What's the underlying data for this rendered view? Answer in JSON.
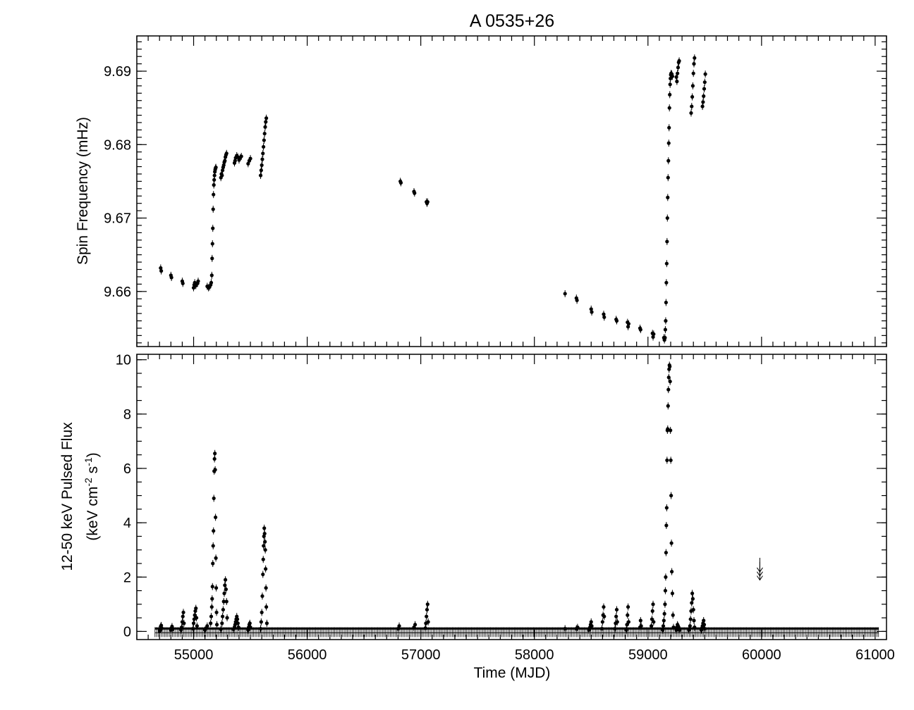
{
  "chart_data": {
    "type": "scatter",
    "title": "A 0535+26",
    "xlabel": "Time (MJD)",
    "xlim": [
      54500,
      61100
    ],
    "xticks": [
      55000,
      56000,
      57000,
      58000,
      59000,
      60000,
      61000
    ],
    "grid": false,
    "panels": [
      {
        "name": "spin-frequency",
        "ylabel": "Spin Frequency (mHz)",
        "ylim": [
          9.6525,
          9.6948
        ],
        "yticks": [
          9.66,
          9.67,
          9.68,
          9.69
        ],
        "ytick_labels": [
          "9.66",
          "9.67",
          "9.68",
          "9.69"
        ],
        "series": [
          {
            "x": [
              54710,
              54715,
              54800,
              54805,
              54900,
              54905,
              55000,
              55005,
              55010,
              55020,
              55035,
              55040,
              55120,
              55130,
              55140,
              55150,
              55155,
              55160,
              55163,
              55166,
              55169,
              55172,
              55175,
              55178,
              55181,
              55184,
              55187,
              55190,
              55193,
              55196,
              55240,
              55245,
              55250,
              55255,
              55260,
              55265,
              55270,
              55275,
              55280,
              55285,
              55290,
              55360,
              55365,
              55370,
              55380,
              55390,
              55400,
              55410,
              55420,
              55480,
              55490,
              55500,
              55590,
              55595,
              55600,
              55605,
              55610,
              55615,
              55620,
              55625,
              55630,
              55635,
              55640,
              56820,
              56825,
              56940,
              56945,
              57050,
              57055,
              57060,
              58270,
              58370,
              58375,
              58500,
              58505,
              58610,
              58615,
              58720,
              58725,
              58820,
              58825,
              58830,
              58930,
              58935,
              59040,
              59045,
              59050,
              59140,
              59145,
              59150,
              59153,
              59156,
              59159,
              59162,
              59165,
              59168,
              59171,
              59174,
              59177,
              59180,
              59183,
              59186,
              59189,
              59192,
              59195,
              59198,
              59201,
              59204,
              59210,
              59215,
              59250,
              59255,
              59260,
              59265,
              59270,
              59275,
              59380,
              59385,
              59390,
              59395,
              59400,
              59405,
              59410,
              59480,
              59485,
              59490,
              59495,
              59500,
              59505
            ],
            "y": [
              9.6632,
              9.6628,
              9.6622,
              9.6619,
              9.6614,
              9.6611,
              9.6605,
              9.6609,
              9.6612,
              9.6608,
              9.6611,
              9.6614,
              9.6607,
              9.6605,
              9.6606,
              9.6609,
              9.6612,
              9.6622,
              9.6645,
              9.6665,
              9.6686,
              9.6712,
              9.6732,
              9.6745,
              9.6752,
              9.6758,
              9.6763,
              9.6766,
              9.6768,
              9.6769,
              9.6755,
              9.676,
              9.6758,
              9.6765,
              9.6769,
              9.6772,
              9.6776,
              9.6778,
              9.6783,
              9.6786,
              9.6788,
              9.6775,
              9.6778,
              9.6782,
              9.6785,
              9.6783,
              9.6779,
              9.6782,
              9.6784,
              9.6774,
              9.6778,
              9.6781,
              9.6758,
              9.6765,
              9.6772,
              9.678,
              9.6788,
              9.6797,
              9.6806,
              9.6815,
              9.6824,
              9.6831,
              9.6836,
              9.675,
              9.6748,
              9.6736,
              9.6734,
              9.6722,
              9.672,
              9.6722,
              9.6597,
              9.6591,
              9.6588,
              9.6576,
              9.6572,
              9.6569,
              9.6565,
              9.6562,
              9.656,
              9.6558,
              9.6552,
              9.6556,
              9.655,
              9.6548,
              9.6543,
              9.6538,
              9.6542,
              9.6537,
              9.6534,
              9.6537,
              9.6548,
              9.656,
              9.6585,
              9.6612,
              9.6638,
              9.6668,
              9.67,
              9.6728,
              9.6755,
              9.6778,
              9.6802,
              9.6823,
              9.685,
              9.6868,
              9.6882,
              9.689,
              9.6895,
              9.6897,
              9.6896,
              9.6893,
              9.6892,
              9.6886,
              9.6897,
              9.6905,
              9.6912,
              9.6914,
              9.6843,
              9.6852,
              9.6865,
              9.688,
              9.6897,
              9.691,
              9.6918,
              9.6852,
              9.6858,
              9.6866,
              9.6876,
              9.6885,
              9.6896
            ]
          }
        ]
      },
      {
        "name": "pulsed-flux",
        "ylabel": "12-50 keV Pulsed Flux",
        "ylabel2": "(keV cm",
        "ylabel2_sup1": "-2",
        "ylabel2_mid": " s",
        "ylabel2_sup2": "-1",
        "ylabel2_end": ")",
        "ylim": [
          -0.3,
          10.2
        ],
        "yticks": [
          0,
          2,
          4,
          6,
          8,
          10
        ],
        "ytick_labels": [
          "0",
          "2",
          "4",
          "6",
          "8",
          "10"
        ],
        "baseline": {
          "x_start": 54660,
          "x_end": 61030,
          "y": 0
        },
        "series": [
          {
            "x": [
              54700,
              54705,
              54710,
              54715,
              54720,
              54800,
              54805,
              54810,
              54815,
              54890,
              54895,
              54900,
              54905,
              54910,
              54915,
              54995,
              55000,
              55005,
              55010,
              55015,
              55020,
              55025,
              55030,
              55100,
              55110,
              55120,
              55150,
              55155,
              55160,
              55163,
              55166,
              55169,
              55172,
              55175,
              55178,
              55181,
              55184,
              55187,
              55190,
              55193,
              55196,
              55199,
              55202,
              55205,
              55240,
              55250,
              55255,
              55260,
              55265,
              55270,
              55275,
              55280,
              55285,
              55290,
              55295,
              55350,
              55360,
              55365,
              55370,
              55375,
              55380,
              55385,
              55390,
              55395,
              55480,
              55485,
              55490,
              55495,
              55500,
              55590,
              55595,
              55600,
              55605,
              55610,
              55613,
              55616,
              55619,
              55622,
              55625,
              55628,
              55631,
              55634,
              55637,
              55640,
              55645,
              56800,
              56810,
              56940,
              56950,
              57040,
              57045,
              57050,
              57055,
              57060,
              57065,
              58270,
              58370,
              58380,
              58480,
              58490,
              58495,
              58500,
              58505,
              58595,
              58600,
              58605,
              58610,
              58615,
              58710,
              58715,
              58720,
              58725,
              58730,
              58810,
              58815,
              58820,
              58825,
              58830,
              58930,
              58935,
              58940,
              59030,
              59035,
              59040,
              59045,
              59050,
              59130,
              59135,
              59140,
              59145,
              59150,
              59153,
              59156,
              59159,
              59162,
              59165,
              59168,
              59171,
              59174,
              59177,
              59180,
              59183,
              59186,
              59189,
              59192,
              59195,
              59198,
              59201,
              59204,
              59207,
              59210,
              59215,
              59220,
              59225,
              59250,
              59255,
              59260,
              59265,
              59270,
              59275,
              59280,
              59360,
              59370,
              59375,
              59380,
              59385,
              59390,
              59395,
              59400,
              59405,
              59410,
              59470,
              59475,
              59480,
              59485,
              59490,
              59495,
              59500
            ],
            "y": [
              0.02,
              0.08,
              0.18,
              0.22,
              0.12,
              0.05,
              0.12,
              0.18,
              0.08,
              0.05,
              0.15,
              0.35,
              0.55,
              0.7,
              0.3,
              0.1,
              0.3,
              0.45,
              0.6,
              0.75,
              0.85,
              0.5,
              0.2,
              0.05,
              0.12,
              0.2,
              0.3,
              0.55,
              0.9,
              1.2,
              1.65,
              2.5,
              3.15,
              3.7,
              4.9,
              5.9,
              6.35,
              6.55,
              5.95,
              4.2,
              2.7,
              1.6,
              0.7,
              0.25,
              0.08,
              0.3,
              0.55,
              0.8,
              1.1,
              1.4,
              1.7,
              1.9,
              1.55,
              1.1,
              0.5,
              0.08,
              0.15,
              0.25,
              0.35,
              0.45,
              0.55,
              0.45,
              0.3,
              0.15,
              0.05,
              0.15,
              0.25,
              0.3,
              0.15,
              0.1,
              0.35,
              0.7,
              1.3,
              2.1,
              2.65,
              3.15,
              3.5,
              3.8,
              3.6,
              3.3,
              3.0,
              2.3,
              1.6,
              0.9,
              0.3,
              0.1,
              0.2,
              0.15,
              0.25,
              0.12,
              0.3,
              0.55,
              0.8,
              1.0,
              0.35,
              0.1,
              0.1,
              0.15,
              0.05,
              0.15,
              0.25,
              0.35,
              0.2,
              0.1,
              0.35,
              0.6,
              0.9,
              0.55,
              0.1,
              0.3,
              0.55,
              0.8,
              0.35,
              0.05,
              0.25,
              0.6,
              0.9,
              0.35,
              0.15,
              0.4,
              0.2,
              0.2,
              0.45,
              0.75,
              1.0,
              0.35,
              0.05,
              0.2,
              0.4,
              0.65,
              1.0,
              1.5,
              2.0,
              2.9,
              3.9,
              4.55,
              6.3,
              7.4,
              7.45,
              8.3,
              8.9,
              9.35,
              9.65,
              9.8,
              9.75,
              9.2,
              7.4,
              6.3,
              5.0,
              3.25,
              2.2,
              1.4,
              0.6,
              0.15,
              0.05,
              0.15,
              0.25,
              0.2,
              0.15,
              0.1,
              0.05,
              0.05,
              0.2,
              0.45,
              0.75,
              1.05,
              1.4,
              1.2,
              0.8,
              0.4,
              0.15,
              0.05,
              0.12,
              0.2,
              0.3,
              0.4,
              0.25,
              0.1
            ]
          }
        ],
        "upper_limits": {
          "x": [
            59985,
            59985,
            59985
          ],
          "y": [
            2.45,
            2.3,
            2.15
          ]
        }
      }
    ]
  }
}
